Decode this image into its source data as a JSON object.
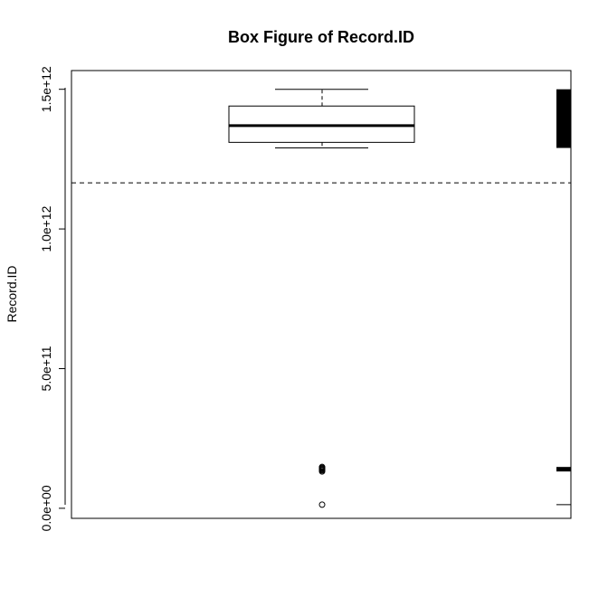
{
  "chart_data": {
    "type": "box",
    "title": "Box Figure of Record.ID",
    "xlabel": "",
    "ylabel": "Record.ID",
    "ylim": [
      -36000000000.0,
      1567000000000.0
    ],
    "y_ticks": [
      {
        "value": 0,
        "label": "0.0e+00"
      },
      {
        "value": 500000000000.0,
        "label": "5.0e+11"
      },
      {
        "value": 1000000000000.0,
        "label": "1.0e+12"
      },
      {
        "value": 1500000000000.0,
        "label": "1.5e+12"
      }
    ],
    "box": {
      "min": 1290000000000.0,
      "q1": 1310000000000.0,
      "median": 1370000000000.0,
      "q3": 1440000000000.0,
      "max": 1500000000000.0
    },
    "outliers": [
      13000000000.0,
      132000000000.0,
      136000000000.0,
      139000000000.0,
      142000000000.0,
      145000000000.0,
      148000000000.0
    ],
    "mean_line": 1165000000000.0,
    "rug": {
      "segments": [
        {
          "from": 1290000000000.0,
          "to": 1500000000000.0
        },
        {
          "from": 132000000000.0,
          "to": 148000000000.0
        }
      ],
      "ticks": [
        13000000000.0
      ]
    },
    "grid": false,
    "legend": "none"
  }
}
